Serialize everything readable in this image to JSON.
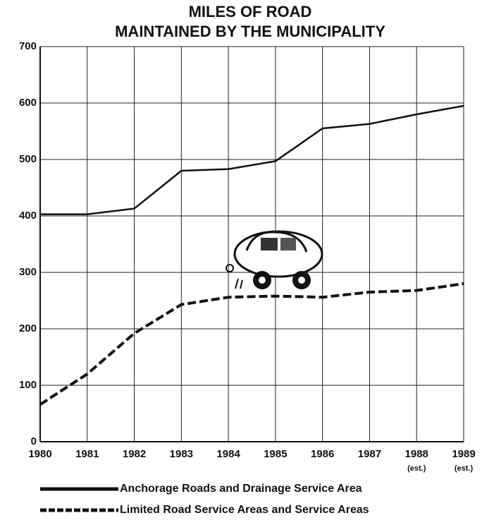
{
  "chart_data": {
    "type": "line",
    "title": [
      "MILES OF ROAD",
      "MAINTAINED BY THE MUNICIPALITY"
    ],
    "categories": [
      "1980",
      "1981",
      "1982",
      "1983",
      "1984",
      "1985",
      "1986",
      "1987",
      "1988",
      "1989"
    ],
    "category_notes": [
      null,
      null,
      null,
      null,
      null,
      null,
      null,
      null,
      "(est.)",
      "(est.)"
    ],
    "series": [
      {
        "name": "Anchorage Roads and Drainage Service Area",
        "color": "#111111",
        "dash": false,
        "values": [
          403,
          403,
          413,
          480,
          483,
          497,
          555,
          563,
          580,
          595
        ]
      },
      {
        "name": "Limited Road Service Areas and Service Areas",
        "color": "#111111",
        "dash": true,
        "values": [
          66,
          120,
          192,
          243,
          256,
          258,
          256,
          265,
          268,
          280
        ]
      }
    ],
    "ylim": [
      0,
      700
    ],
    "yticks": [
      0,
      100,
      200,
      300,
      400,
      500,
      600,
      700
    ],
    "grid": true,
    "legend": "bottom"
  }
}
